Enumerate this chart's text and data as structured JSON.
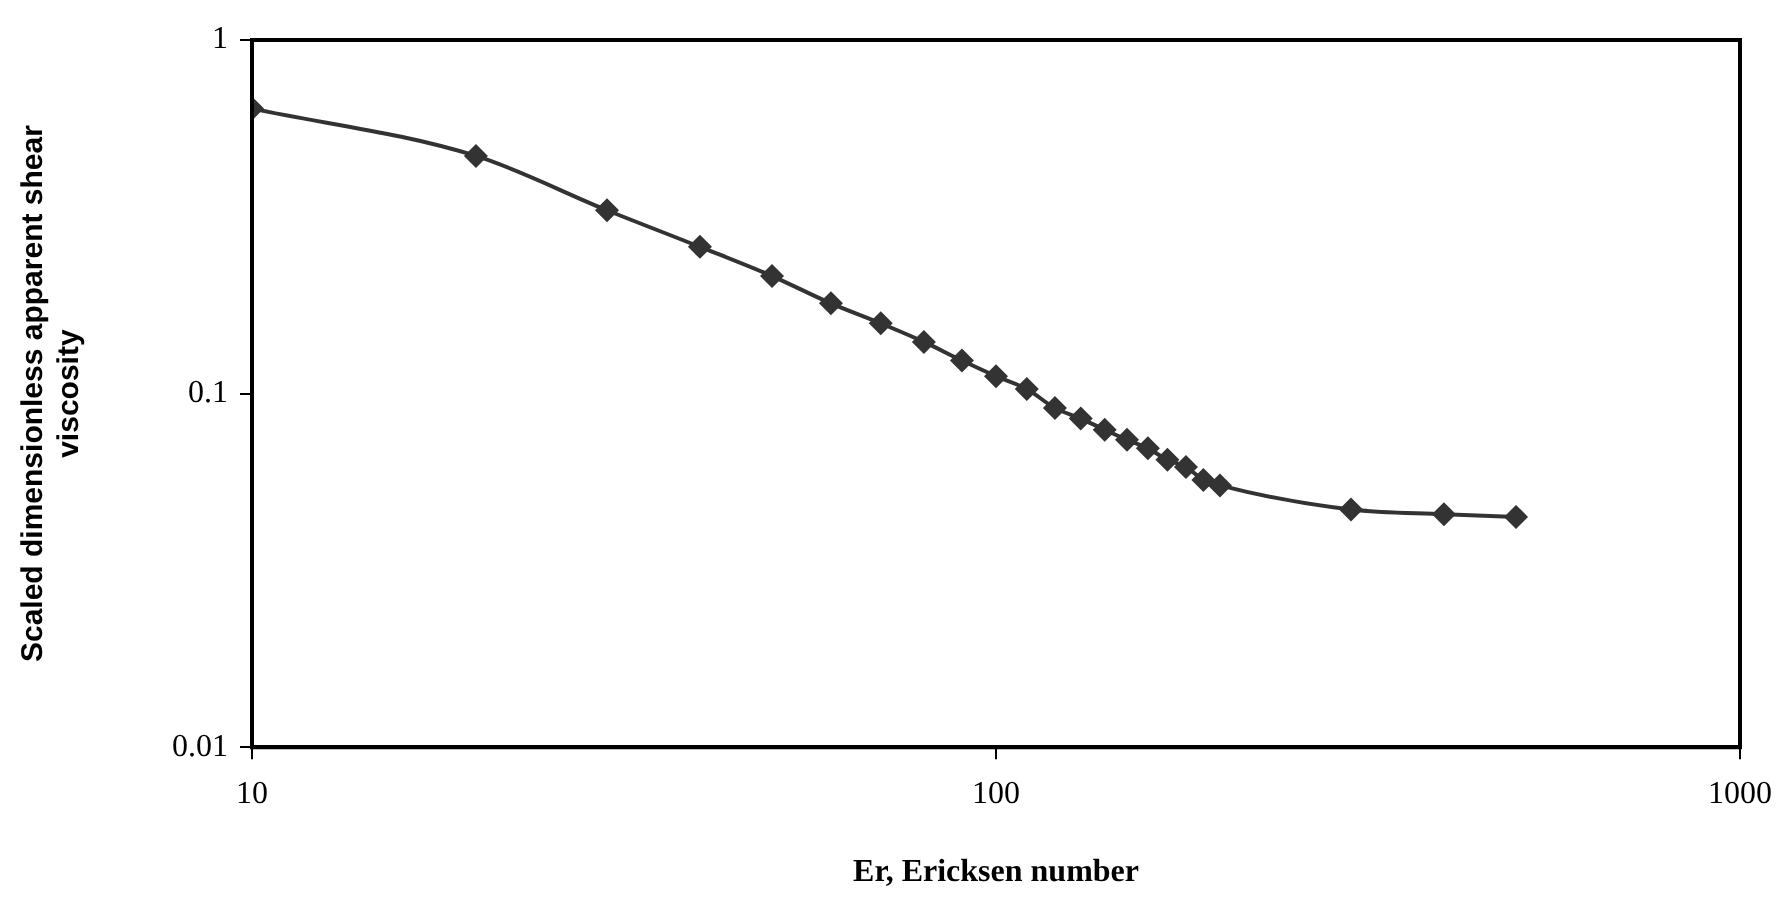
{
  "chart_data": {
    "type": "line",
    "xlabel": "Er, Ericksen number",
    "ylabel": "Scaled dimensionless apparent shear viscosity",
    "x": [
      10,
      20,
      30,
      40,
      50,
      60,
      70,
      80,
      90,
      100,
      110,
      120,
      130,
      140,
      150,
      160,
      170,
      180,
      190,
      200,
      300,
      400,
      500
    ],
    "series": [
      {
        "color": "#333333",
        "values": [
          0.64,
          0.47,
          0.33,
          0.26,
          0.215,
          0.18,
          0.158,
          0.14,
          0.124,
          0.112,
          0.103,
          0.091,
          0.085,
          0.079,
          0.074,
          0.07,
          0.065,
          0.062,
          0.057,
          0.055,
          0.047,
          0.0456,
          0.0448
        ]
      }
    ],
    "log": "xy",
    "xlim": [
      10,
      1000
    ],
    "xticks": [
      10,
      100,
      1000
    ],
    "ylim": [
      0.01,
      1
    ],
    "yticks": [
      0.01,
      0.1,
      1
    ],
    "grid": false,
    "legend": false,
    "marker": "diamond",
    "line_style": "solid"
  }
}
